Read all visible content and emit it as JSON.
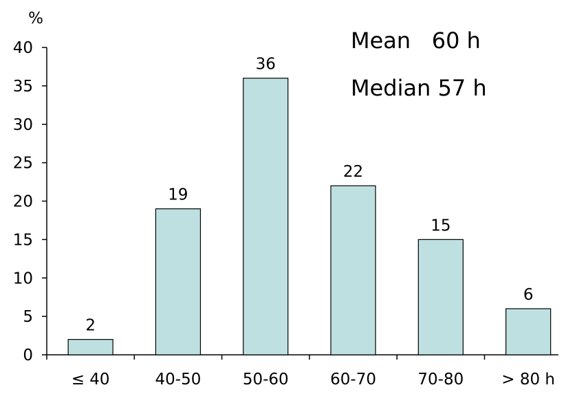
{
  "chart_data": {
    "type": "bar",
    "categories": [
      "≤ 40",
      "40-50",
      "50-60",
      "60-70",
      "70-80",
      "> 80 h"
    ],
    "values": [
      2,
      19,
      36,
      22,
      15,
      6
    ],
    "data_labels": [
      "2",
      "19",
      "36",
      "22",
      "15",
      "6"
    ],
    "ylabel": "%",
    "ylim": [
      0,
      40
    ],
    "yticks": [
      "0",
      "5",
      "10",
      "15",
      "20",
      "25",
      "30",
      "35",
      "40"
    ],
    "grid": false,
    "legend": "none",
    "bar_color": "#bfe0e0",
    "bar_edge_color": "#000000",
    "annotations": {
      "mean": "Mean   60 h",
      "median": "Median 57 h"
    }
  }
}
